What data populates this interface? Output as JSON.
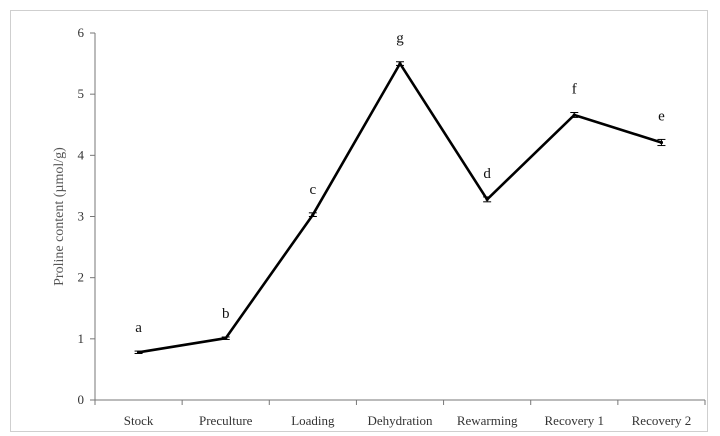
{
  "chart_data": {
    "type": "line",
    "title": "",
    "xlabel": "",
    "ylabel": "Proline content (µmol/g)",
    "categories": [
      "Stock",
      "Preculture",
      "Loading",
      "Dehydration",
      "Rewarming",
      "Recovery 1",
      "Recovery 2"
    ],
    "values": [
      0.78,
      1.01,
      3.03,
      5.5,
      3.28,
      4.66,
      4.21
    ],
    "error": [
      0.02,
      0.02,
      0.03,
      0.03,
      0.04,
      0.04,
      0.05
    ],
    "annotations": [
      "a",
      "b",
      "c",
      "g",
      "d",
      "f",
      "e"
    ],
    "ylim": [
      0,
      6
    ],
    "yticks": [
      0,
      1,
      2,
      3,
      4,
      5,
      6
    ],
    "grid": false,
    "legend": "none",
    "line_color": "#000000"
  }
}
